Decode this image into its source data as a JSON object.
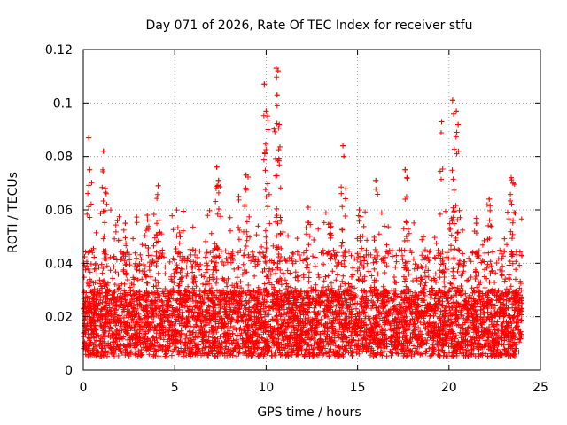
{
  "chart_data": {
    "type": "scatter",
    "title": "Day 071 of 2026, Rate Of TEC Index for receiver stfu",
    "xlabel": "GPS time / hours",
    "ylabel": "ROTI / TECUs",
    "xlim": [
      0,
      25
    ],
    "ylim": [
      0,
      0.12
    ],
    "xticks": [
      0,
      5,
      10,
      15,
      20,
      25
    ],
    "xtick_labels": [
      "0",
      "5",
      "10",
      "15",
      "20",
      "25"
    ],
    "yticks": [
      0,
      0.02,
      0.04,
      0.06,
      0.08,
      0.1,
      0.12
    ],
    "ytick_labels": [
      "0",
      "0.02",
      "0.04",
      "0.06",
      "0.08",
      "0.1",
      "0.12"
    ],
    "grid": true,
    "marker": "+",
    "series": [
      {
        "name": "ROTI",
        "color": "#ff0000",
        "x_range": [
          0,
          24
        ],
        "typical_range": [
          0.005,
          0.03
        ],
        "peaks": [
          {
            "x": 0.3,
            "y": 0.087
          },
          {
            "x": 0.35,
            "y": 0.075
          },
          {
            "x": 1.1,
            "y": 0.082
          },
          {
            "x": 1.2,
            "y": 0.068
          },
          {
            "x": 2.3,
            "y": 0.055
          },
          {
            "x": 3.5,
            "y": 0.058
          },
          {
            "x": 4.1,
            "y": 0.069
          },
          {
            "x": 5.3,
            "y": 0.05
          },
          {
            "x": 6.0,
            "y": 0.045
          },
          {
            "x": 7.3,
            "y": 0.076
          },
          {
            "x": 7.4,
            "y": 0.071
          },
          {
            "x": 8.5,
            "y": 0.065
          },
          {
            "x": 8.9,
            "y": 0.073
          },
          {
            "x": 9.9,
            "y": 0.107
          },
          {
            "x": 10.0,
            "y": 0.097
          },
          {
            "x": 10.1,
            "y": 0.09
          },
          {
            "x": 10.55,
            "y": 0.113
          },
          {
            "x": 10.65,
            "y": 0.112
          },
          {
            "x": 10.6,
            "y": 0.103
          },
          {
            "x": 10.7,
            "y": 0.079
          },
          {
            "x": 12.3,
            "y": 0.061
          },
          {
            "x": 13.5,
            "y": 0.055
          },
          {
            "x": 14.2,
            "y": 0.084
          },
          {
            "x": 14.25,
            "y": 0.08
          },
          {
            "x": 15.1,
            "y": 0.06
          },
          {
            "x": 16.0,
            "y": 0.071
          },
          {
            "x": 17.6,
            "y": 0.075
          },
          {
            "x": 17.7,
            "y": 0.072
          },
          {
            "x": 18.6,
            "y": 0.05
          },
          {
            "x": 19.6,
            "y": 0.093
          },
          {
            "x": 20.2,
            "y": 0.101
          },
          {
            "x": 20.4,
            "y": 0.097
          },
          {
            "x": 20.5,
            "y": 0.092
          },
          {
            "x": 21.5,
            "y": 0.055
          },
          {
            "x": 22.2,
            "y": 0.064
          },
          {
            "x": 23.4,
            "y": 0.072
          },
          {
            "x": 23.5,
            "y": 0.07
          }
        ]
      }
    ]
  }
}
